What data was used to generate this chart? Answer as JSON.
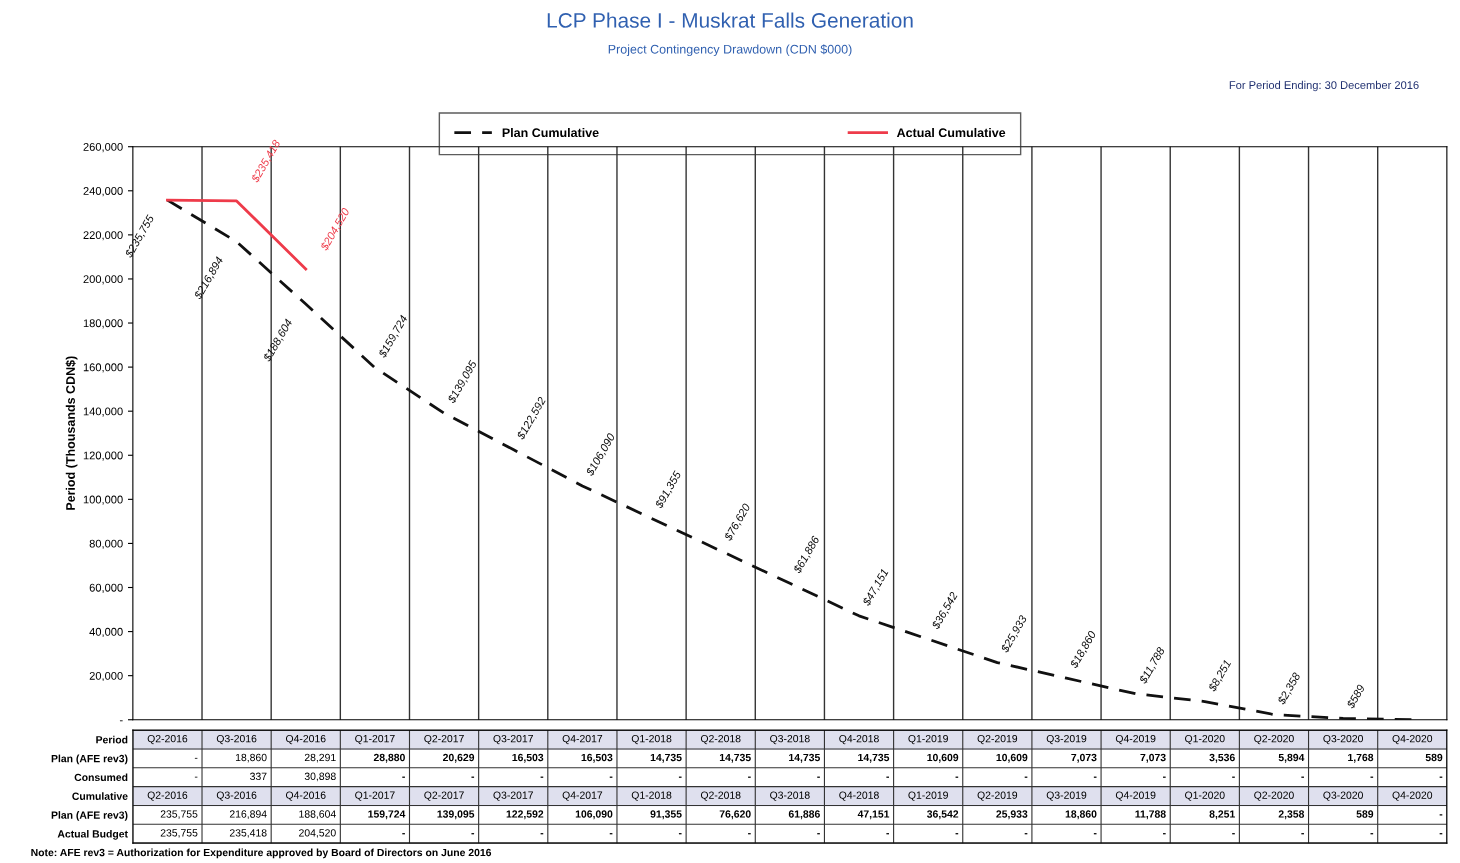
{
  "chart_data": [
    {
      "type": "line",
      "title": "LCP Phase I - Muskrat Falls Generation",
      "subtitle": "Project Contingency Drawdown (CDN $000)",
      "ylabel": "Period (Thousands CDN$)",
      "annotations": [
        "For Period Ending: 30 December 2016"
      ],
      "categories": [
        null,
        null,
        null,
        null,
        null,
        null,
        null,
        null,
        null,
        null,
        null,
        null,
        null,
        null,
        null,
        null,
        null,
        null,
        null
      ],
      "series": [
        {
          "name": "Plan Cumulative",
          "color": "#111111",
          "line_style": "dashed",
          "values": [
            235755,
            216894,
            188604,
            159724,
            139095,
            122592,
            106090,
            91355,
            76620,
            61886,
            47151,
            36542,
            25933,
            18860,
            11788,
            8251,
            2358,
            589,
            0
          ],
          "value_labels": [
            "$235,755",
            "$216,894",
            "$188,604",
            "$159,724",
            "$139,095",
            "$122,592",
            "$106,090",
            "$91,355",
            "$76,620",
            "$61,886",
            "$47,151",
            "$36,542",
            "$25,933",
            "$18,860",
            "$11,788",
            "$8,251",
            "$2,358",
            "$589",
            null
          ]
        },
        {
          "name": "Actual Cumulative",
          "color": "#ee3b4a",
          "line_style": "solid",
          "values": [
            235755,
            235418,
            204520,
            null,
            null,
            null,
            null,
            null,
            null,
            null,
            null,
            null,
            null,
            null,
            null,
            null,
            null,
            null,
            null
          ],
          "value_labels": [
            null,
            "$235,418",
            "$204,520",
            null,
            null,
            null,
            null,
            null,
            null,
            null,
            null,
            null,
            null,
            null,
            null,
            null,
            null,
            null,
            null
          ]
        }
      ],
      "ylim": [
        0,
        260000
      ],
      "yticks": [
        {
          "value": 0,
          "label": "-"
        },
        {
          "value": 20000,
          "label": "20,000"
        },
        {
          "value": 40000,
          "label": "40,000"
        },
        {
          "value": 60000,
          "label": "60,000"
        },
        {
          "value": 80000,
          "label": "80,000"
        },
        {
          "value": 100000,
          "label": "100,000"
        },
        {
          "value": 120000,
          "label": "120,000"
        },
        {
          "value": 140000,
          "label": "140,000"
        },
        {
          "value": 160000,
          "label": "160,000"
        },
        {
          "value": 180000,
          "label": "180,000"
        },
        {
          "value": 200000,
          "label": "200,000"
        },
        {
          "value": 220000,
          "label": "220,000"
        },
        {
          "value": 240000,
          "label": "240,000"
        },
        {
          "value": 260000,
          "label": "260,000"
        }
      ],
      "grid": "x",
      "legend": "top",
      "marker": "none",
      "tick_labels": "y"
    },
    {
      "type": "heatmap",
      "annotations": [
        "Note: AFE rev3 = Authorization for Expenditure approved by Board of Directors on June 2016"
      ],
      "categories": [
        null,
        null,
        null,
        null,
        null,
        null,
        null,
        null,
        null,
        null,
        null,
        null,
        null,
        null,
        null,
        null,
        null,
        null,
        null
      ],
      "y_categories": [
        "Period",
        "Plan (AFE rev3)",
        "Consumed",
        "Cumulative",
        "Plan (AFE rev3)",
        "Actual Budget"
      ],
      "cells": [
        [
          null,
          null,
          null,
          null,
          null,
          null,
          null,
          null,
          null,
          null,
          null,
          null,
          null,
          null,
          null,
          null,
          null,
          null,
          null
        ],
        [
          null,
          null,
          null,
          null,
          null,
          null,
          null,
          null,
          null,
          null,
          null,
          null,
          null,
          null,
          null,
          null,
          null,
          null,
          null
        ],
        [
          null,
          null,
          null,
          null,
          null,
          null,
          null,
          null,
          null,
          null,
          null,
          null,
          null,
          null,
          null,
          null,
          null,
          null,
          null
        ],
        [
          null,
          null,
          null,
          null,
          null,
          null,
          null,
          null,
          null,
          null,
          null,
          null,
          null,
          null,
          null,
          null,
          null,
          null,
          null
        ],
        [
          null,
          null,
          null,
          null,
          null,
          null,
          null,
          null,
          null,
          null,
          null,
          null,
          null,
          null,
          null,
          null,
          null,
          null,
          null
        ],
        [
          null,
          null,
          null,
          null,
          null,
          null,
          null,
          null,
          null,
          null,
          null,
          null,
          null,
          null,
          null,
          null,
          null,
          null,
          null
        ]
      ],
      "cell_labels": [
        [
          "Q2-2016",
          "Q3-2016",
          "Q4-2016",
          "Q1-2017",
          "Q2-2017",
          "Q3-2017",
          "Q4-2017",
          "Q1-2018",
          "Q2-2018",
          "Q3-2018",
          "Q4-2018",
          "Q1-2019",
          "Q2-2019",
          "Q3-2019",
          "Q4-2019",
          "Q1-2020",
          "Q2-2020",
          "Q3-2020",
          "Q4-2020"
        ],
        [
          "-",
          "18,860",
          "28,291",
          "28,880",
          "20,629",
          "16,503",
          "16,503",
          "14,735",
          "14,735",
          "14,735",
          "14,735",
          "10,609",
          "10,609",
          "7,073",
          "7,073",
          "3,536",
          "5,894",
          "1,768",
          "589"
        ],
        [
          "-",
          "337",
          "30,898",
          "-",
          "-",
          "-",
          "-",
          "-",
          "-",
          "-",
          "-",
          "-",
          "-",
          "-",
          "-",
          "-",
          "-",
          "-",
          "-"
        ],
        [
          "Q2-2016",
          "Q3-2016",
          "Q4-2016",
          "Q1-2017",
          "Q2-2017",
          "Q3-2017",
          "Q4-2017",
          "Q1-2018",
          "Q2-2018",
          "Q3-2018",
          "Q4-2018",
          "Q1-2019",
          "Q2-2019",
          "Q3-2019",
          "Q4-2019",
          "Q1-2020",
          "Q2-2020",
          "Q3-2020",
          "Q4-2020"
        ],
        [
          "235,755",
          "216,894",
          "188,604",
          "159,724",
          "139,095",
          "122,592",
          "106,090",
          "91,355",
          "76,620",
          "61,886",
          "47,151",
          "36,542",
          "25,933",
          "18,860",
          "11,788",
          "8,251",
          "2,358",
          "589",
          "-"
        ],
        [
          "235,755",
          "235,418",
          "204,520",
          "-",
          "-",
          "-",
          "-",
          "-",
          "-",
          "-",
          "-",
          "-",
          "-",
          "-",
          "-",
          "-",
          "-",
          "-",
          "-"
        ]
      ],
      "tick_labels": "y"
    }
  ]
}
